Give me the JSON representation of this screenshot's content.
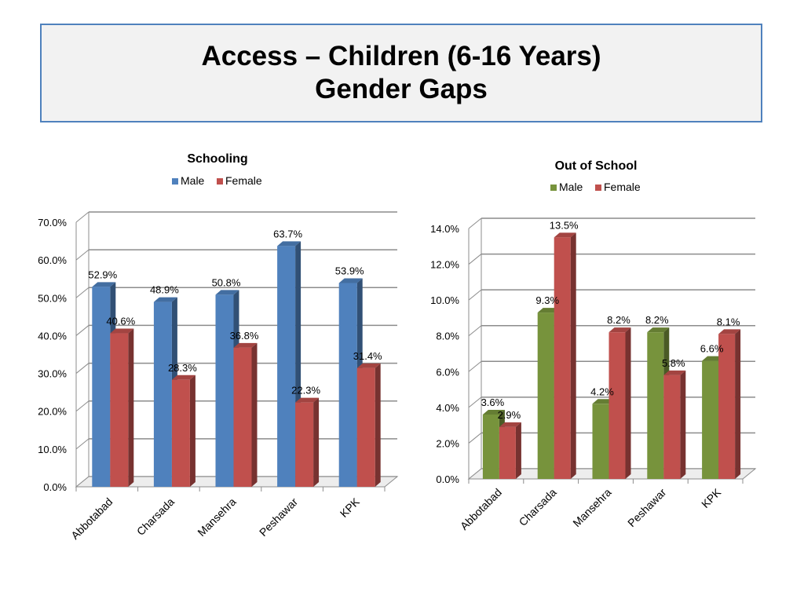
{
  "slide": {
    "title_line1": "Access – Children (6-16 Years)",
    "title_line2": "Gender Gaps"
  },
  "chart_data": [
    {
      "type": "bar",
      "title": "Schooling",
      "categories": [
        "Abbotabad",
        "Charsada",
        "Mansehra",
        "Peshawar",
        "KPK"
      ],
      "series": [
        {
          "name": "Male",
          "values": [
            52.9,
            48.9,
            50.8,
            63.7,
            53.9
          ],
          "color": "#4f81bd"
        },
        {
          "name": "Female",
          "values": [
            40.6,
            28.3,
            36.8,
            22.3,
            31.4
          ],
          "color": "#c0504d"
        }
      ],
      "value_labels": [
        [
          "52.9%",
          "48.9%",
          "50.8%",
          "63.7%",
          "53.9%"
        ],
        [
          "40.6%",
          "28.3%",
          "36.8%",
          "22.3%",
          "31.4%"
        ]
      ],
      "ylim": [
        0,
        70
      ],
      "yticks": [
        "0.0%",
        "10.0%",
        "20.0%",
        "30.0%",
        "40.0%",
        "50.0%",
        "60.0%",
        "70.0%"
      ],
      "legend_position": "top",
      "grid": true,
      "three_d": true
    },
    {
      "type": "bar",
      "title": "Out of School",
      "categories": [
        "Abbotabad",
        "Charsada",
        "Mansehra",
        "Peshawar",
        "KPK"
      ],
      "series": [
        {
          "name": "Male",
          "values": [
            3.6,
            9.3,
            4.2,
            8.2,
            6.6
          ],
          "color": "#77933c"
        },
        {
          "name": "Female",
          "values": [
            2.9,
            13.5,
            8.2,
            5.8,
            8.1
          ],
          "color": "#c0504d"
        }
      ],
      "value_labels": [
        [
          "3.6%",
          "9.3%",
          "4.2%",
          "8.2%",
          "6.6%"
        ],
        [
          "2.9%",
          "13.5%",
          "8.2%",
          "5.8%",
          "8.1%"
        ]
      ],
      "ylim": [
        0,
        14
      ],
      "yticks": [
        "0.0%",
        "2.0%",
        "4.0%",
        "6.0%",
        "8.0%",
        "10.0%",
        "12.0%",
        "14.0%"
      ],
      "legend_position": "top",
      "grid": true,
      "three_d": true
    }
  ]
}
